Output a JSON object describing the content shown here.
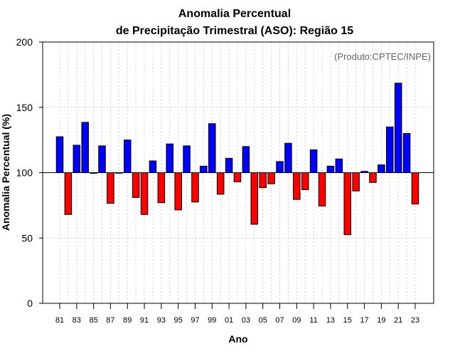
{
  "chart_data": {
    "type": "bar",
    "title_line1": "Anomalia Percentual",
    "title_line2": "de Precipitação Trimestral (ASO): Região 15",
    "xlabel": "Ano",
    "ylabel": "Anomalia Percentual (%)",
    "credit": "(Produto:CPTEC/INPE)",
    "baseline": 100,
    "ylim": [
      0,
      200
    ],
    "yticks": [
      0,
      50,
      100,
      150,
      200
    ],
    "years": [
      "81",
      "82",
      "83",
      "84",
      "85",
      "86",
      "87",
      "88",
      "89",
      "90",
      "91",
      "92",
      "93",
      "94",
      "95",
      "96",
      "97",
      "98",
      "99",
      "00",
      "01",
      "02",
      "03",
      "04",
      "05",
      "06",
      "07",
      "08",
      "09",
      "10",
      "11",
      "12",
      "13",
      "14",
      "15",
      "16",
      "17",
      "18",
      "19",
      "20",
      "21",
      "22",
      "23"
    ],
    "xtick_labels": [
      "81",
      "83",
      "85",
      "87",
      "89",
      "91",
      "93",
      "95",
      "97",
      "99",
      "01",
      "03",
      "05",
      "07",
      "09",
      "11",
      "13",
      "15",
      "17",
      "19",
      "21",
      "23"
    ],
    "values": [
      127.5,
      68,
      121,
      138.5,
      99.5,
      120.5,
      76.5,
      100,
      125,
      81,
      68,
      109,
      77,
      122,
      71.5,
      120.5,
      77.5,
      105,
      137.5,
      83.5,
      111,
      93,
      120,
      60.5,
      88.5,
      91.5,
      108.5,
      122.5,
      79.5,
      87,
      117.5,
      74.5,
      105,
      110.5,
      52.5,
      86,
      101,
      92.5,
      106,
      135,
      168.5,
      130,
      76
    ],
    "colors": {
      "above": "#0000ff",
      "below": "#ff0000"
    }
  }
}
